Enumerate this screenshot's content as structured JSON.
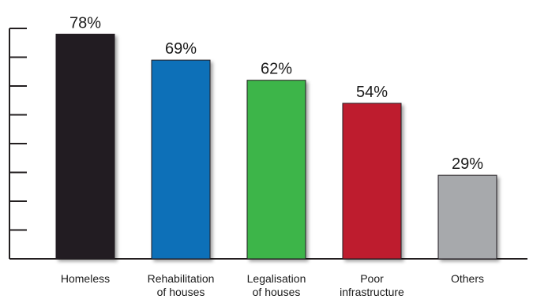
{
  "chart_data": {
    "type": "bar",
    "categories": [
      [
        "Homeless"
      ],
      [
        "Rehabilitation",
        "of houses"
      ],
      [
        "Legalisation",
        "of houses"
      ],
      [
        "Poor",
        "infrastructure"
      ],
      [
        "Others"
      ]
    ],
    "values": [
      78,
      69,
      62,
      54,
      29
    ],
    "value_labels": [
      "78%",
      "69%",
      "62%",
      "54%",
      "29%"
    ],
    "bar_colors": [
      "#231f20",
      "#0e70b8",
      "#3db54a",
      "#be1e2d",
      "#a7a9ac"
    ],
    "axis_color": "#231f20",
    "ylim": [
      0,
      80
    ],
    "ytick_count": 9,
    "ytick_labels": false,
    "grid": false,
    "legend": "none",
    "title": "",
    "xlabel": "",
    "ylabel": ""
  }
}
